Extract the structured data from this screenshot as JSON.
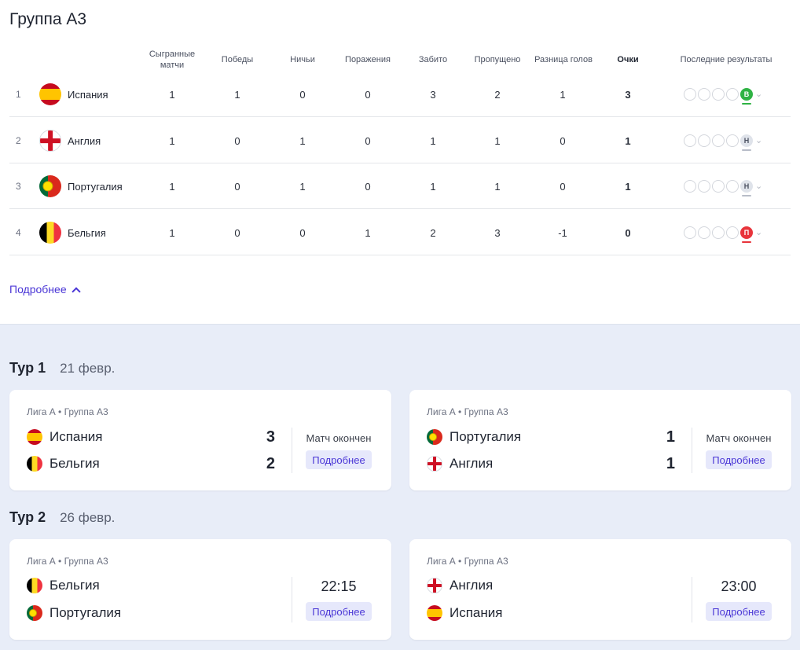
{
  "title": "Группа А3",
  "columns": {
    "played_1": "Сыгранные",
    "played_2": "матчи",
    "wins": "Победы",
    "draws": "Ничьи",
    "losses": "Поражения",
    "scored": "Забито",
    "conceded": "Пропущено",
    "diff": "Разница голов",
    "points": "Очки",
    "last": "Последние результаты"
  },
  "rows": [
    {
      "rank": "1",
      "team": "Испания",
      "flag": "spain-flag",
      "played": "1",
      "wins": "1",
      "draws": "0",
      "losses": "0",
      "scored": "3",
      "conceded": "2",
      "diff": "1",
      "points": "3",
      "last": "В",
      "last_type": "win"
    },
    {
      "rank": "2",
      "team": "Англия",
      "flag": "england-flag",
      "played": "1",
      "wins": "0",
      "draws": "1",
      "losses": "0",
      "scored": "1",
      "conceded": "1",
      "diff": "0",
      "points": "1",
      "last": "Н",
      "last_type": "draw"
    },
    {
      "rank": "3",
      "team": "Португалия",
      "flag": "portugal-flag",
      "played": "1",
      "wins": "0",
      "draws": "1",
      "losses": "0",
      "scored": "1",
      "conceded": "1",
      "diff": "0",
      "points": "1",
      "last": "Н",
      "last_type": "draw"
    },
    {
      "rank": "4",
      "team": "Бельгия",
      "flag": "belgium-flag",
      "played": "1",
      "wins": "0",
      "draws": "0",
      "losses": "1",
      "scored": "2",
      "conceded": "3",
      "diff": "-1",
      "points": "0",
      "last": "П",
      "last_type": "loss"
    }
  ],
  "more_label": "Подробнее",
  "rounds": [
    {
      "name": "Тур 1",
      "date": "21 февр.",
      "matches": [
        {
          "league": "Лига А • Группа А3",
          "home": "Испания",
          "home_score": "3",
          "away": "Бельгия",
          "away_score": "2",
          "status": "Матч окончен",
          "button": "Подробнее"
        },
        {
          "league": "Лига А • Группа А3",
          "home": "Португалия",
          "home_score": "1",
          "away": "Англия",
          "away_score": "1",
          "status": "Матч окончен",
          "button": "Подробнее"
        }
      ]
    },
    {
      "name": "Тур 2",
      "date": "26 февр.",
      "matches": [
        {
          "league": "Лига А • Группа А3",
          "home": "Бельгия",
          "away": "Португалия",
          "time": "22:15",
          "button": "Подробнее"
        },
        {
          "league": "Лига А • Группа А3",
          "home": "Англия",
          "away": "Испания",
          "time": "23:00",
          "button": "Подробнее"
        }
      ]
    }
  ],
  "colors": {
    "accent": "#4a36d6",
    "win": "#2fb344",
    "loss": "#e8343b",
    "draw": "#dfe3ea",
    "background_lower": "#e8edf8"
  }
}
